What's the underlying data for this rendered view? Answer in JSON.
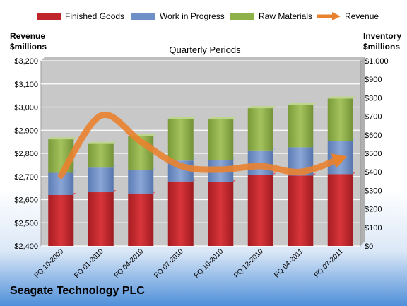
{
  "legend": {
    "finished": "Finished Goods",
    "wip": "Work in Progress",
    "raw": "Raw Materials",
    "revenue": "Revenue"
  },
  "left_axis_title_1": "Revenue",
  "left_axis_title_2": "$millions",
  "right_axis_title_1": "Inventory",
  "right_axis_title_2": "$millions",
  "company": "Seagate Technology PLC",
  "colors": {
    "finished": "#c0252b",
    "wip": "#6f8fc7",
    "raw": "#8fb14a",
    "revenue": "#e9822f",
    "plot_bg": "#c8c8c8",
    "grid": "#ffffff"
  },
  "chart_data": {
    "type": "bar",
    "stacked": true,
    "title": "Quarterly Periods",
    "categories": [
      "FQ 10-2009",
      "FQ 01-2010",
      "FQ 04-2010",
      "FQ 07-2010",
      "FQ 10-2010",
      "FQ 12-2010",
      "FQ 04-2011",
      "FQ 07-2011"
    ],
    "series": [
      {
        "name": "Finished Goods",
        "axis": "right",
        "values": [
          275,
          290,
          283,
          348,
          345,
          383,
          380,
          388
        ]
      },
      {
        "name": "Work in Progress",
        "axis": "right",
        "values": [
          120,
          133,
          126,
          113,
          120,
          133,
          153,
          178
        ]
      },
      {
        "name": "Raw Materials",
        "axis": "right",
        "values": [
          181,
          128,
          184,
          225,
          218,
          228,
          227,
          230
        ]
      },
      {
        "name": "Revenue",
        "type": "line",
        "axis": "left",
        "values": [
          2704,
          2963,
          2851,
          2746,
          2730,
          2745,
          2720,
          2777
        ]
      }
    ],
    "ylim_left": [
      2400,
      3200
    ],
    "yticks_left": [
      "$2,400",
      "$2,500",
      "$2,600",
      "$2,700",
      "$2,800",
      "$2,900",
      "$3,000",
      "$3,100",
      "$3,200"
    ],
    "ylim_right": [
      0,
      1000
    ],
    "yticks_right": [
      "$0",
      "$100",
      "$200",
      "$300",
      "$400",
      "$500",
      "$600",
      "$700",
      "$800",
      "$900",
      "$1,000"
    ],
    "grid": true,
    "legend_position": "top"
  }
}
